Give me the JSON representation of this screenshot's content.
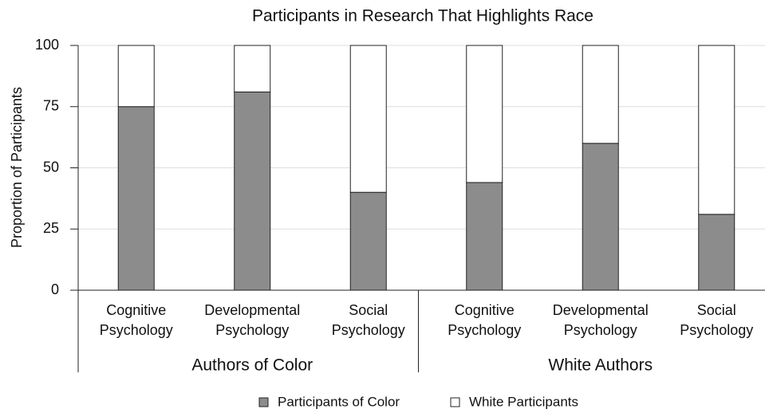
{
  "chart_data": {
    "type": "stacked_bar",
    "title": "Participants in Research That Highlights Race",
    "y_label": "Proportion of Participants",
    "categories": [
      [
        "Cognitive",
        "Psychology"
      ],
      [
        "Developmental",
        "Psychology"
      ],
      [
        "Social",
        "Psychology"
      ],
      [
        "Cognitive",
        "Psychology"
      ],
      [
        "Developmental",
        "Psychology"
      ],
      [
        "Social",
        "Psychology"
      ]
    ],
    "groups": [
      "Authors of Color",
      "White Authors"
    ],
    "series": [
      {
        "name": "Participants of Color",
        "color": "#8c8c8c",
        "values": [
          75,
          81,
          40,
          44,
          60,
          31
        ]
      },
      {
        "name": "White Participants",
        "color": "#ffffff",
        "values": [
          25,
          19,
          60,
          56,
          40,
          69
        ]
      }
    ],
    "ylim": [
      0,
      100
    ],
    "yticks": [
      0,
      25,
      50,
      75,
      100
    ],
    "grid": true,
    "legend": "bottom"
  }
}
